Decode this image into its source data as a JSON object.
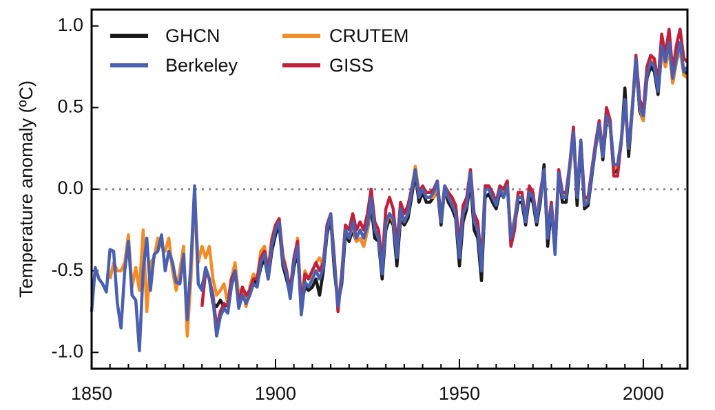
{
  "chart_data": {
    "type": "line",
    "ylabel": "Temperature anomaly (ºC)",
    "x": [
      1850,
      1851,
      1852,
      1853,
      1854,
      1855,
      1856,
      1857,
      1858,
      1859,
      1860,
      1861,
      1862,
      1863,
      1864,
      1865,
      1866,
      1867,
      1868,
      1869,
      1870,
      1871,
      1872,
      1873,
      1874,
      1875,
      1876,
      1877,
      1878,
      1879,
      1880,
      1881,
      1882,
      1883,
      1884,
      1885,
      1886,
      1887,
      1888,
      1889,
      1890,
      1891,
      1892,
      1893,
      1894,
      1895,
      1896,
      1897,
      1898,
      1899,
      1900,
      1901,
      1902,
      1903,
      1904,
      1905,
      1906,
      1907,
      1908,
      1909,
      1910,
      1911,
      1912,
      1913,
      1914,
      1915,
      1916,
      1917,
      1918,
      1919,
      1920,
      1921,
      1922,
      1923,
      1924,
      1925,
      1926,
      1927,
      1928,
      1929,
      1930,
      1931,
      1932,
      1933,
      1934,
      1935,
      1936,
      1937,
      1938,
      1939,
      1940,
      1941,
      1942,
      1943,
      1944,
      1945,
      1946,
      1947,
      1948,
      1949,
      1950,
      1951,
      1952,
      1953,
      1954,
      1955,
      1956,
      1957,
      1958,
      1959,
      1960,
      1961,
      1962,
      1963,
      1964,
      1965,
      1966,
      1967,
      1968,
      1969,
      1970,
      1971,
      1972,
      1973,
      1974,
      1975,
      1976,
      1977,
      1978,
      1979,
      1980,
      1981,
      1982,
      1983,
      1984,
      1985,
      1986,
      1987,
      1988,
      1989,
      1990,
      1991,
      1992,
      1993,
      1994,
      1995,
      1996,
      1997,
      1998,
      1999,
      2000,
      2001,
      2002,
      2003,
      2004,
      2005,
      2006,
      2007,
      2008,
      2009,
      2010,
      2011,
      2012
    ],
    "series": [
      {
        "name": "GHCN",
        "color": "#1a1a1a",
        "values": [
          null,
          null,
          null,
          null,
          null,
          null,
          null,
          null,
          null,
          null,
          null,
          null,
          null,
          null,
          null,
          null,
          null,
          null,
          null,
          null,
          null,
          null,
          null,
          null,
          null,
          null,
          null,
          null,
          null,
          null,
          -0.6,
          -0.5,
          -0.55,
          -0.7,
          -0.72,
          -0.68,
          -0.72,
          -0.7,
          -0.55,
          -0.48,
          -0.7,
          -0.62,
          -0.68,
          -0.62,
          -0.55,
          -0.58,
          -0.48,
          -0.42,
          -0.55,
          -0.38,
          -0.28,
          -0.22,
          -0.47,
          -0.55,
          -0.65,
          -0.48,
          -0.38,
          -0.72,
          -0.6,
          -0.62,
          -0.6,
          -0.55,
          -0.65,
          -0.5,
          -0.28,
          -0.17,
          -0.5,
          -0.7,
          -0.58,
          -0.28,
          -0.32,
          -0.25,
          -0.32,
          -0.3,
          -0.35,
          -0.25,
          -0.1,
          -0.3,
          -0.32,
          -0.55,
          -0.25,
          -0.18,
          -0.22,
          -0.47,
          -0.18,
          -0.22,
          -0.18,
          -0.05,
          0.1,
          -0.08,
          -0.02,
          -0.08,
          -0.08,
          -0.05,
          0.0,
          -0.22,
          0.0,
          -0.08,
          -0.12,
          -0.18,
          -0.47,
          -0.2,
          -0.12,
          0.05,
          -0.25,
          -0.3,
          -0.56,
          -0.05,
          -0.03,
          -0.08,
          -0.12,
          -0.02,
          -0.05,
          0.05,
          -0.32,
          -0.22,
          -0.08,
          -0.08,
          -0.22,
          -0.05,
          -0.08,
          -0.22,
          -0.08,
          0.15,
          -0.35,
          -0.12,
          -0.38,
          0.1,
          -0.08,
          -0.08,
          0.12,
          0.35,
          -0.1,
          0.28,
          -0.12,
          -0.1,
          0.08,
          0.25,
          0.38,
          0.18,
          0.42,
          0.38,
          0.1,
          0.12,
          0.28,
          0.62,
          0.2,
          0.48,
          0.78,
          0.48,
          0.42,
          0.68,
          0.75,
          0.72,
          0.58,
          0.85,
          0.75,
          0.88,
          0.65,
          0.78,
          0.88,
          0.7,
          0.72
        ]
      },
      {
        "name": "CRUTEM",
        "color": "#f28c28",
        "values": [
          null,
          null,
          null,
          null,
          null,
          -0.55,
          -0.45,
          -0.5,
          -0.5,
          -0.45,
          -0.28,
          -0.6,
          -0.48,
          -0.62,
          -0.25,
          -0.75,
          -0.45,
          -0.42,
          -0.3,
          -0.35,
          -0.38,
          -0.3,
          -0.5,
          -0.62,
          -0.5,
          -0.35,
          -0.9,
          -0.55,
          -0.05,
          -0.45,
          -0.35,
          -0.42,
          -0.35,
          -0.55,
          -0.65,
          -0.62,
          -0.58,
          -0.7,
          -0.55,
          -0.45,
          -0.65,
          -0.6,
          -0.72,
          -0.6,
          -0.52,
          -0.55,
          -0.38,
          -0.35,
          -0.5,
          -0.3,
          -0.22,
          -0.2,
          -0.4,
          -0.5,
          -0.62,
          -0.45,
          -0.3,
          -0.72,
          -0.5,
          -0.55,
          -0.5,
          -0.45,
          -0.42,
          -0.48,
          -0.25,
          -0.15,
          -0.45,
          -0.7,
          -0.52,
          -0.25,
          -0.3,
          -0.22,
          -0.32,
          -0.3,
          -0.35,
          -0.25,
          -0.05,
          -0.25,
          -0.3,
          -0.5,
          -0.22,
          -0.15,
          -0.2,
          -0.4,
          -0.15,
          -0.2,
          -0.15,
          0.0,
          0.14,
          -0.02,
          0.0,
          -0.05,
          -0.05,
          -0.05,
          0.02,
          -0.2,
          0.0,
          -0.05,
          -0.08,
          -0.15,
          -0.4,
          -0.12,
          -0.08,
          0.08,
          -0.18,
          -0.22,
          -0.48,
          0.02,
          0.0,
          -0.05,
          -0.08,
          0.02,
          -0.02,
          0.05,
          -0.28,
          -0.18,
          -0.02,
          -0.02,
          -0.18,
          0.0,
          -0.03,
          -0.18,
          -0.05,
          0.12,
          -0.25,
          -0.08,
          -0.38,
          0.1,
          -0.05,
          -0.03,
          0.12,
          0.32,
          -0.05,
          0.3,
          -0.08,
          -0.05,
          0.1,
          0.25,
          0.38,
          0.2,
          0.45,
          0.38,
          0.12,
          0.15,
          0.28,
          0.52,
          0.25,
          0.48,
          0.78,
          0.5,
          0.42,
          0.7,
          0.8,
          0.75,
          0.62,
          0.85,
          0.75,
          0.85,
          0.65,
          0.78,
          0.85,
          0.7,
          0.68
        ]
      },
      {
        "name": "GISS",
        "color": "#c0203a",
        "values": [
          null,
          null,
          null,
          null,
          null,
          null,
          null,
          null,
          null,
          null,
          null,
          null,
          null,
          null,
          null,
          null,
          null,
          null,
          null,
          null,
          null,
          null,
          null,
          null,
          null,
          null,
          null,
          null,
          null,
          null,
          -0.72,
          -0.5,
          -0.55,
          -0.65,
          -0.85,
          -0.75,
          -0.7,
          -0.72,
          -0.55,
          -0.5,
          -0.7,
          -0.6,
          -0.65,
          -0.62,
          -0.55,
          -0.55,
          -0.42,
          -0.38,
          -0.5,
          -0.32,
          -0.22,
          -0.18,
          -0.42,
          -0.5,
          -0.62,
          -0.42,
          -0.32,
          -0.72,
          -0.52,
          -0.55,
          -0.5,
          -0.45,
          -0.5,
          -0.45,
          -0.22,
          -0.15,
          -0.42,
          -0.75,
          -0.52,
          -0.22,
          -0.25,
          -0.15,
          -0.25,
          -0.2,
          -0.25,
          -0.15,
          0.0,
          -0.2,
          -0.25,
          -0.45,
          -0.12,
          -0.05,
          -0.12,
          -0.35,
          -0.08,
          -0.15,
          -0.1,
          0.0,
          0.1,
          -0.02,
          0.02,
          -0.02,
          -0.02,
          0.0,
          0.05,
          -0.18,
          0.02,
          -0.02,
          -0.05,
          -0.1,
          -0.35,
          -0.1,
          -0.05,
          0.12,
          -0.15,
          -0.2,
          -0.45,
          0.02,
          0.02,
          -0.02,
          -0.08,
          0.02,
          0.0,
          0.05,
          -0.35,
          -0.25,
          -0.02,
          -0.02,
          -0.2,
          0.02,
          -0.02,
          -0.2,
          -0.02,
          0.12,
          -0.28,
          -0.08,
          -0.35,
          0.12,
          -0.02,
          -0.02,
          0.15,
          0.38,
          -0.05,
          0.3,
          -0.05,
          -0.05,
          0.12,
          0.28,
          0.42,
          0.22,
          0.5,
          0.42,
          0.08,
          0.08,
          0.3,
          0.55,
          0.25,
          0.5,
          0.82,
          0.55,
          0.48,
          0.75,
          0.82,
          0.8,
          0.65,
          0.95,
          0.82,
          0.98,
          0.72,
          0.88,
          0.98,
          0.8,
          0.78
        ]
      },
      {
        "name": "Berkeley",
        "color": "#4a5fb0",
        "values": [
          -0.75,
          -0.48,
          -0.55,
          -0.58,
          -0.63,
          -0.37,
          -0.38,
          -0.7,
          -0.85,
          -0.5,
          -0.32,
          -0.65,
          -0.68,
          -0.99,
          -0.5,
          -0.3,
          -0.62,
          -0.4,
          -0.38,
          -0.28,
          -0.5,
          -0.38,
          -0.45,
          -0.57,
          -0.58,
          -0.4,
          -0.8,
          -0.45,
          0.02,
          -0.58,
          -0.62,
          -0.48,
          -0.55,
          -0.68,
          -0.9,
          -0.78,
          -0.73,
          -0.76,
          -0.6,
          -0.5,
          -0.73,
          -0.65,
          -0.7,
          -0.65,
          -0.58,
          -0.6,
          -0.45,
          -0.4,
          -0.55,
          -0.35,
          -0.25,
          -0.2,
          -0.45,
          -0.52,
          -0.67,
          -0.45,
          -0.35,
          -0.77,
          -0.57,
          -0.6,
          -0.55,
          -0.5,
          -0.55,
          -0.48,
          -0.25,
          -0.15,
          -0.45,
          -0.72,
          -0.55,
          -0.25,
          -0.3,
          -0.2,
          -0.3,
          -0.25,
          -0.3,
          -0.22,
          -0.05,
          -0.25,
          -0.3,
          -0.52,
          -0.2,
          -0.15,
          -0.18,
          -0.42,
          -0.12,
          -0.2,
          -0.15,
          -0.02,
          0.12,
          -0.05,
          0.0,
          -0.05,
          -0.05,
          -0.02,
          0.05,
          -0.2,
          0.02,
          -0.05,
          -0.1,
          -0.15,
          -0.42,
          -0.15,
          -0.1,
          0.1,
          -0.2,
          -0.25,
          -0.5,
          0.0,
          0.0,
          -0.05,
          -0.1,
          0.0,
          -0.05,
          0.02,
          -0.3,
          -0.2,
          -0.05,
          -0.05,
          -0.2,
          -0.02,
          -0.05,
          -0.2,
          -0.05,
          0.12,
          -0.3,
          -0.1,
          -0.4,
          0.1,
          -0.05,
          -0.05,
          0.15,
          0.35,
          -0.05,
          0.3,
          -0.1,
          -0.08,
          0.1,
          0.25,
          0.4,
          0.2,
          0.45,
          0.4,
          0.15,
          0.15,
          0.3,
          0.55,
          0.25,
          0.5,
          0.8,
          0.5,
          0.45,
          0.7,
          0.78,
          0.75,
          0.6,
          0.88,
          0.78,
          0.9,
          0.68,
          0.8,
          0.9,
          0.72,
          0.75
        ]
      }
    ],
    "xlim": [
      1850,
      2012
    ],
    "xticks": [
      1850,
      1900,
      1950,
      2000
    ],
    "xminor_ticks": [
      1855,
      1860,
      1865,
      1870,
      1875,
      1880,
      1885,
      1890,
      1895,
      1905,
      1910,
      1915,
      1920,
      1925,
      1930,
      1935,
      1940,
      1945,
      1955,
      1960,
      1965,
      1970,
      1975,
      1980,
      1985,
      1990,
      1995,
      2005,
      2010
    ],
    "ylim": [
      -1.1,
      1.1
    ],
    "yticks": [
      {
        "value": -1,
        "label": "-1.0"
      },
      {
        "value": -0.5,
        "label": "-0.5"
      },
      {
        "value": 0,
        "label": "0.0"
      },
      {
        "value": 0.5,
        "label": "0.5"
      },
      {
        "value": 1,
        "label": "1.0"
      }
    ],
    "hline": 0,
    "legend": "upper left",
    "grid": false
  }
}
